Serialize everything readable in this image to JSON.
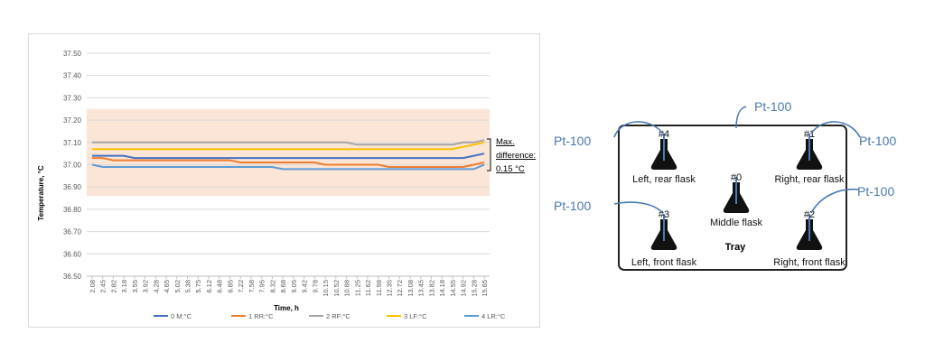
{
  "chart_data": {
    "type": "line",
    "title": "",
    "xlabel": "Time, h",
    "ylabel": "Temperature, °C",
    "ylim": [
      36.5,
      37.5
    ],
    "y_ticks": [
      "37.50",
      "37.40",
      "37.30",
      "37.20",
      "37.10",
      "37.00",
      "36.90",
      "36.80",
      "36.70",
      "36.60",
      "36.50"
    ],
    "categories": [
      "2.08",
      "2.45",
      "2.82",
      "3.18",
      "3.55",
      "3.92",
      "4.28",
      "4.65",
      "5.02",
      "5.38",
      "5.75",
      "6.12",
      "6.48",
      "6.85",
      "7.22",
      "7.58",
      "7.95",
      "8.32",
      "8.68",
      "9.05",
      "9.42",
      "9.78",
      "10.15",
      "10.52",
      "10.88",
      "11.25",
      "11.62",
      "11.98",
      "12.35",
      "12.72",
      "13.08",
      "13.45",
      "13.82",
      "14.18",
      "14.55",
      "14.92",
      "15.28",
      "15.65"
    ],
    "band": [
      36.86,
      37.25
    ],
    "series": [
      {
        "name": "0 M:°C",
        "color": "#4472c4",
        "values": [
          37.04,
          37.04,
          37.04,
          37.04,
          37.03,
          37.03,
          37.03,
          37.03,
          37.03,
          37.03,
          37.03,
          37.03,
          37.03,
          37.03,
          37.03,
          37.03,
          37.03,
          37.03,
          37.03,
          37.03,
          37.03,
          37.03,
          37.03,
          37.03,
          37.03,
          37.03,
          37.03,
          37.03,
          37.03,
          37.03,
          37.03,
          37.03,
          37.03,
          37.03,
          37.03,
          37.03,
          37.04,
          37.05
        ]
      },
      {
        "name": "1 RR:°C",
        "color": "#ed7d31",
        "values": [
          37.03,
          37.03,
          37.02,
          37.02,
          37.02,
          37.02,
          37.02,
          37.02,
          37.02,
          37.02,
          37.02,
          37.02,
          37.02,
          37.02,
          37.01,
          37.01,
          37.01,
          37.01,
          37.01,
          37.01,
          37.01,
          37.01,
          37.0,
          37.0,
          37.0,
          37.0,
          37.0,
          37.0,
          36.99,
          36.99,
          36.99,
          36.99,
          36.99,
          36.99,
          36.99,
          36.99,
          37.0,
          37.01
        ]
      },
      {
        "name": "2 RF:°C",
        "color": "#a5a5a5",
        "values": [
          37.1,
          37.1,
          37.1,
          37.1,
          37.1,
          37.1,
          37.1,
          37.1,
          37.1,
          37.1,
          37.1,
          37.1,
          37.1,
          37.1,
          37.1,
          37.1,
          37.1,
          37.1,
          37.1,
          37.1,
          37.1,
          37.1,
          37.1,
          37.1,
          37.1,
          37.09,
          37.09,
          37.09,
          37.09,
          37.09,
          37.09,
          37.09,
          37.09,
          37.09,
          37.09,
          37.1,
          37.1,
          37.11
        ]
      },
      {
        "name": "3 LF:°C",
        "color": "#ffc000",
        "values": [
          37.07,
          37.07,
          37.07,
          37.07,
          37.07,
          37.07,
          37.07,
          37.07,
          37.07,
          37.07,
          37.07,
          37.07,
          37.07,
          37.07,
          37.07,
          37.07,
          37.07,
          37.07,
          37.07,
          37.07,
          37.07,
          37.07,
          37.07,
          37.07,
          37.07,
          37.07,
          37.07,
          37.07,
          37.07,
          37.07,
          37.07,
          37.07,
          37.07,
          37.07,
          37.07,
          37.08,
          37.09,
          37.1
        ]
      },
      {
        "name": "4 LR:°C",
        "color": "#5b9bd5",
        "values": [
          37.0,
          36.99,
          36.99,
          36.99,
          36.99,
          36.99,
          36.99,
          36.99,
          36.99,
          36.99,
          36.99,
          36.99,
          36.99,
          36.99,
          36.99,
          36.99,
          36.99,
          36.99,
          36.98,
          36.98,
          36.98,
          36.98,
          36.98,
          36.98,
          36.98,
          36.98,
          36.98,
          36.98,
          36.98,
          36.98,
          36.98,
          36.98,
          36.98,
          36.98,
          36.98,
          36.98,
          36.98,
          37.0
        ]
      }
    ],
    "annotation": {
      "line1": "Max.",
      "line2": "difference:",
      "line3": "0.15 °C"
    }
  },
  "diagram": {
    "tray_label": "Tray",
    "sensor_label": "Pt-100",
    "flasks": [
      {
        "id": "#4",
        "name": "Left, rear flask"
      },
      {
        "id": "#1",
        "name": "Right, rear flask"
      },
      {
        "id": "#0",
        "name": "Middle flask"
      },
      {
        "id": "#3",
        "name": "Left, front flask"
      },
      {
        "id": "#2",
        "name": "Right, front flask"
      }
    ],
    "sensor_color": "#4a7ab0"
  }
}
